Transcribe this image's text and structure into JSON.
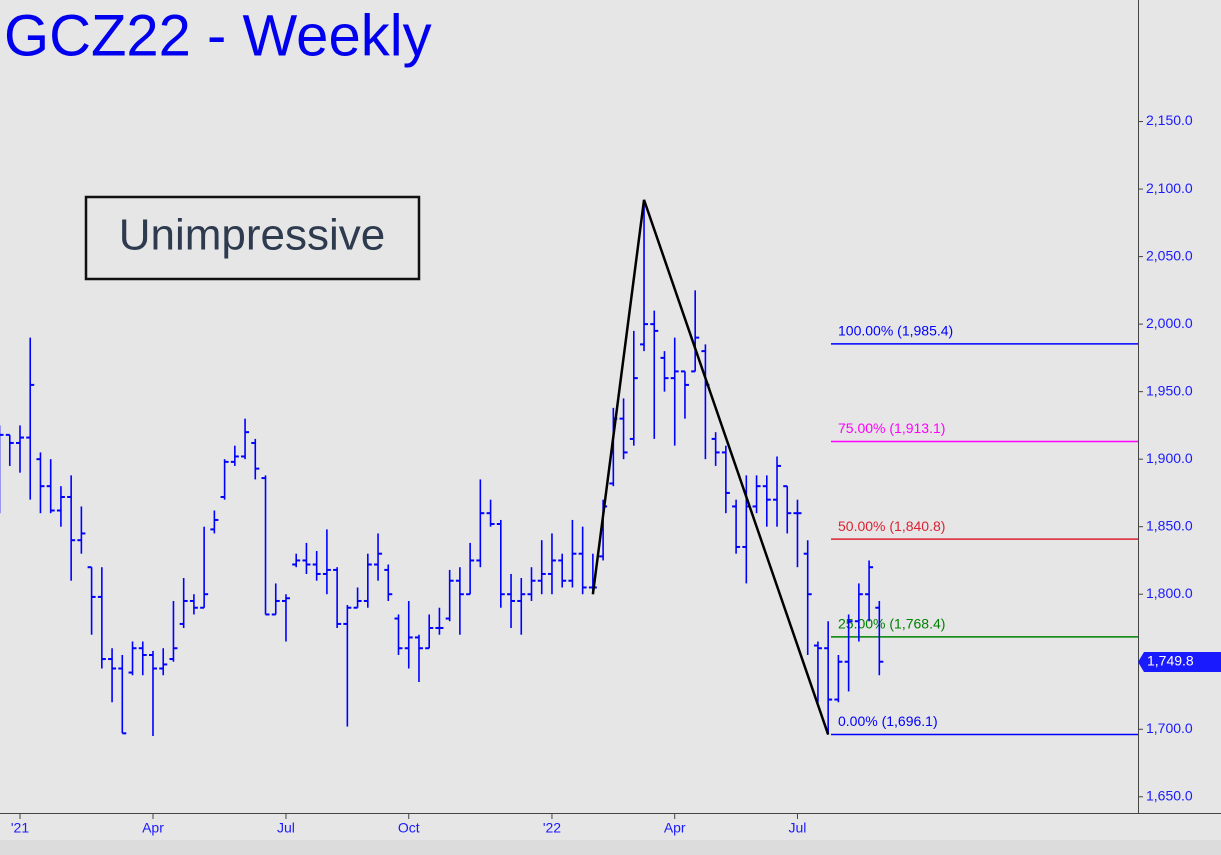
{
  "chart_data": {
    "type": "ohlc",
    "title": "GCZ22 - Weekly",
    "annotation": "Unimpressive",
    "color": "#0000ff",
    "categories": [
      null,
      null,
      "'21",
      null,
      null,
      null,
      null,
      null,
      null,
      null,
      null,
      null,
      null,
      null,
      null,
      "Apr",
      null,
      null,
      null,
      null,
      null,
      null,
      null,
      null,
      null,
      null,
      null,
      null,
      "Jul",
      null,
      null,
      null,
      null,
      null,
      null,
      null,
      null,
      null,
      null,
      null,
      "Oct",
      null,
      null,
      null,
      null,
      null,
      null,
      null,
      null,
      null,
      null,
      null,
      null,
      null,
      "'22",
      null,
      null,
      null,
      null,
      null,
      null,
      null,
      null,
      null,
      null,
      null,
      "Apr",
      null,
      null,
      null,
      null,
      null,
      null,
      null,
      null,
      null,
      null,
      null,
      "Jul",
      null,
      null,
      null,
      null,
      null,
      null,
      null,
      null
    ],
    "open": [
      1870,
      1918,
      1912,
      1916,
      1900,
      1880,
      1862,
      1872,
      1840,
      1820,
      1798,
      1752,
      1745,
      1742,
      1760,
      1755,
      1745,
      1752,
      1778,
      1795,
      1790,
      1848,
      1872,
      1898,
      1902,
      1912,
      1886,
      1785,
      1795,
      1822,
      1825,
      1822,
      1815,
      1818,
      1778,
      1790,
      1795,
      1822,
      1818,
      1782,
      1760,
      1768,
      1760,
      1775,
      1782,
      1810,
      1800,
      1825,
      1860,
      1852,
      1800,
      1795,
      1800,
      1810,
      1815,
      1825,
      1810,
      1830,
      1805,
      1828,
      1882,
      1930,
      1915,
      1985,
      2000,
      1975,
      1960,
      1965,
      1965,
      1980,
      1915,
      1905,
      1865,
      1835,
      1865,
      1880,
      1870,
      1880,
      1860,
      1830,
      1762,
      1760,
      1722,
      1750,
      1780,
      1800,
      1790
    ],
    "high": [
      1925,
      1918,
      1925,
      1990,
      1905,
      1900,
      1880,
      1888,
      1865,
      1820,
      1820,
      1760,
      1755,
      1765,
      1765,
      1758,
      1760,
      1795,
      1812,
      1800,
      1850,
      1862,
      1900,
      1910,
      1930,
      1915,
      1888,
      1808,
      1800,
      1830,
      1838,
      1832,
      1848,
      1820,
      1792,
      1805,
      1830,
      1845,
      1822,
      1785,
      1795,
      1770,
      1785,
      1790,
      1818,
      1820,
      1838,
      1885,
      1870,
      1855,
      1815,
      1812,
      1820,
      1840,
      1845,
      1830,
      1855,
      1850,
      1830,
      1870,
      1938,
      1945,
      1995,
      2092,
      2010,
      1980,
      1990,
      1965,
      2025,
      1985,
      1920,
      1910,
      1870,
      1888,
      1888,
      1888,
      1902,
      1880,
      1870,
      1840,
      1765,
      1780,
      1755,
      1785,
      1808,
      1825,
      1795
    ],
    "low": [
      1860,
      1895,
      1890,
      1870,
      1860,
      1860,
      1850,
      1810,
      1830,
      1770,
      1745,
      1720,
      1697,
      1740,
      1740,
      1695,
      1740,
      1750,
      1775,
      1785,
      1790,
      1845,
      1870,
      1895,
      1900,
      1885,
      1785,
      1785,
      1765,
      1820,
      1815,
      1810,
      1800,
      1775,
      1702,
      1790,
      1790,
      1810,
      1795,
      1755,
      1745,
      1735,
      1760,
      1770,
      1780,
      1770,
      1800,
      1820,
      1850,
      1790,
      1775,
      1770,
      1795,
      1800,
      1800,
      1805,
      1805,
      1800,
      1800,
      1825,
      1880,
      1900,
      1910,
      1980,
      1915,
      1950,
      1910,
      1930,
      1965,
      1900,
      1895,
      1860,
      1830,
      1808,
      1860,
      1850,
      1850,
      1845,
      1820,
      1755,
      1720,
      1696.1,
      1720,
      1728,
      1765,
      1780,
      1740
    ],
    "close": [
      1918,
      1912,
      1916,
      1955,
      1880,
      1862,
      1872,
      1840,
      1845,
      1798,
      1752,
      1745,
      1697,
      1760,
      1755,
      1745,
      1748,
      1760,
      1795,
      1790,
      1800,
      1855,
      1898,
      1902,
      1920,
      1893,
      1785,
      1795,
      1797,
      1825,
      1822,
      1815,
      1818,
      1778,
      1790,
      1795,
      1822,
      1830,
      1800,
      1760,
      1768,
      1760,
      1775,
      1775,
      1810,
      1800,
      1825,
      1860,
      1852,
      1800,
      1795,
      1800,
      1810,
      1815,
      1825,
      1810,
      1830,
      1805,
      1805,
      1865,
      1930,
      1905,
      1960,
      2000,
      1995,
      1960,
      1965,
      1955,
      1990,
      1955,
      1905,
      1875,
      1835,
      1865,
      1880,
      1870,
      1895,
      1860,
      1860,
      1800,
      1760,
      1722,
      1750,
      1780,
      1800,
      1820,
      1750
    ],
    "ylim": [
      1638,
      2240
    ],
    "yticks": [
      {
        "value": 1650,
        "label": "1,650.0"
      },
      {
        "value": 1700,
        "label": "1,700.0"
      },
      {
        "value": 1750,
        "label": "1,750.0"
      },
      {
        "value": 1800,
        "label": "1,800.0"
      },
      {
        "value": 1850,
        "label": "1,850.0"
      },
      {
        "value": 1900,
        "label": "1,900.0"
      },
      {
        "value": 1950,
        "label": "1,950.0"
      },
      {
        "value": 2000,
        "label": "2,000.0"
      },
      {
        "value": 2050,
        "label": "2,050.0"
      },
      {
        "value": 2100,
        "label": "2,100.0"
      },
      {
        "value": 2150,
        "label": "2,150.0"
      }
    ],
    "last_price": {
      "value": 1749.8,
      "label": "1,749.8"
    },
    "fib_levels": [
      {
        "value": 1985.4,
        "label": "100.00% (1,985.4)",
        "color": "#0000ff"
      },
      {
        "value": 1913.1,
        "label": "75.00% (1,913.1)",
        "color": "#ff00ff"
      },
      {
        "value": 1840.8,
        "label": "50.00% (1,840.8)",
        "color": "#dd2233"
      },
      {
        "value": 1768.4,
        "label": "25.00% (1,768.4)",
        "color": "#008000"
      },
      {
        "value": 1696.1,
        "label": "0.00% (1,696.1)",
        "color": "#0000ff"
      }
    ],
    "zigzag": {
      "color": "#000000",
      "points": [
        {
          "x": 58,
          "value": 1800
        },
        {
          "x": 63,
          "value": 2092
        },
        {
          "x": 81,
          "value": 1696.1
        }
      ]
    }
  }
}
